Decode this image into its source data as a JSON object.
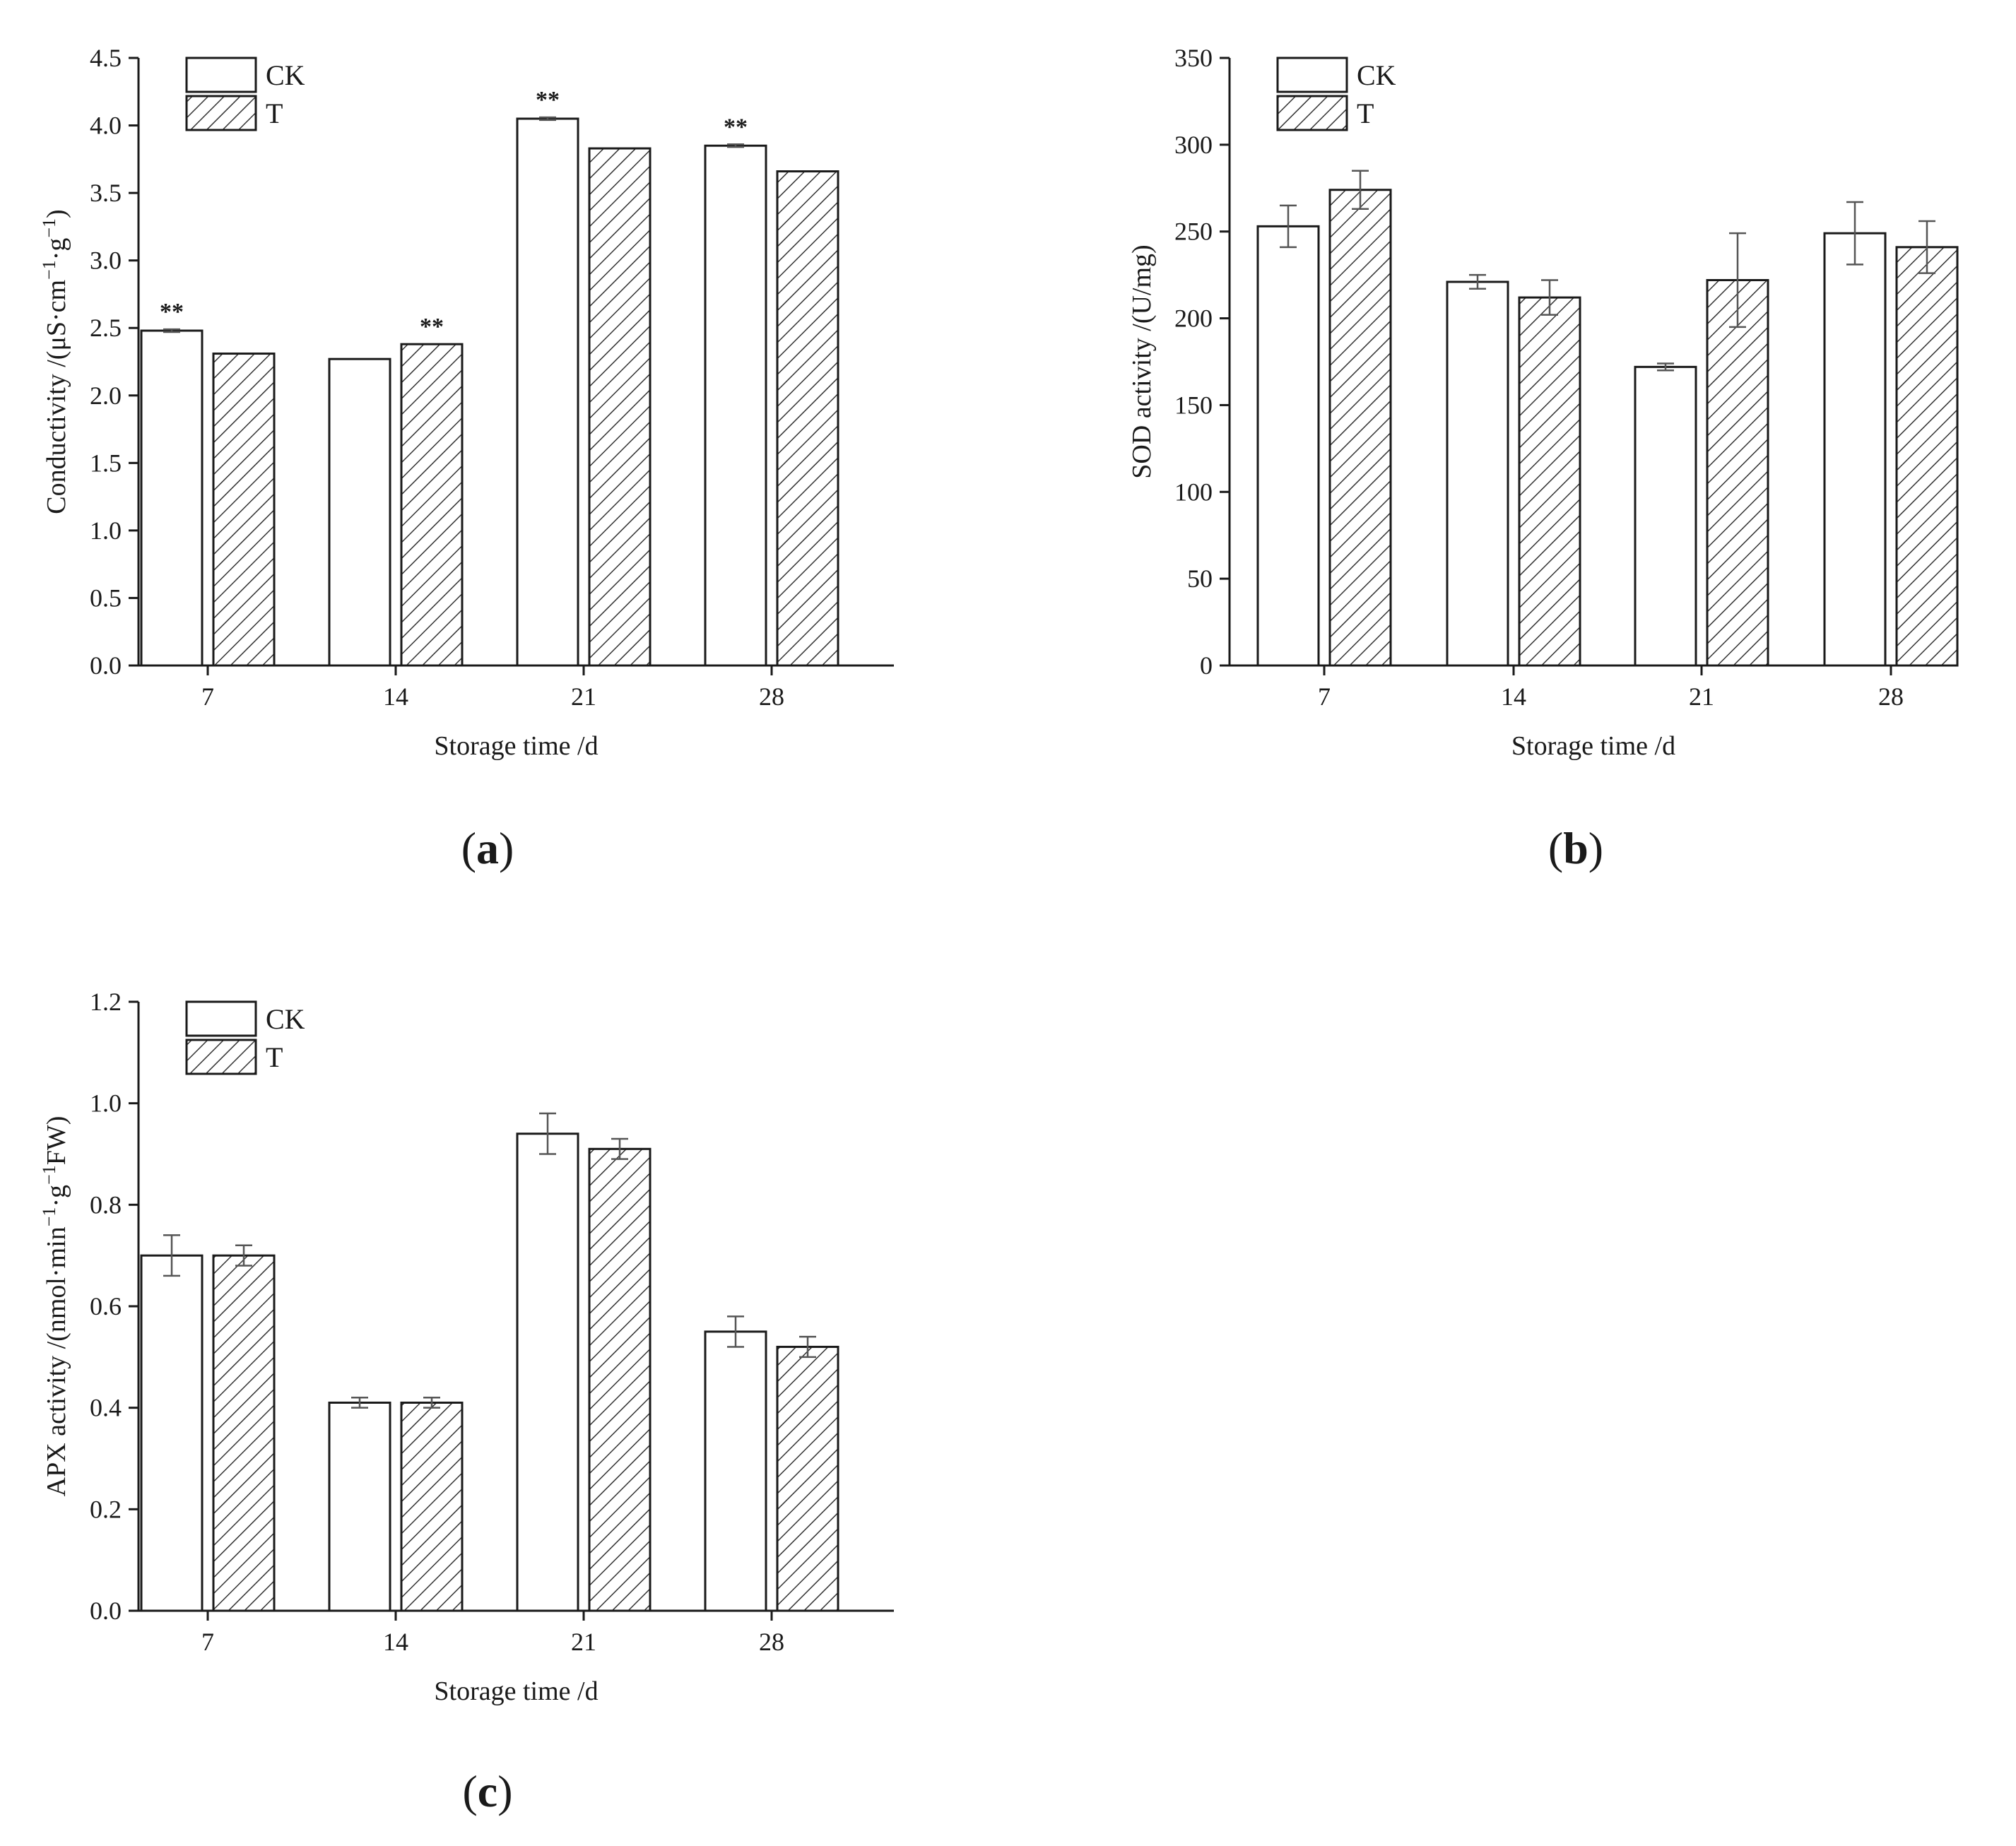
{
  "colors": {
    "axis": "#1a1a1a",
    "bar_ck_fill": "#ffffff",
    "bar_t_hatch": "#333333",
    "error_bar": "#555555"
  },
  "chart_data": [
    {
      "id": "a",
      "type": "bar",
      "panel_label": "a",
      "categories": [
        "7",
        "14",
        "21",
        "28"
      ],
      "xlabel": "Storage time /d",
      "ylabel": "Conductivity /(μS·cm⁻¹·g⁻¹)",
      "ylim": [
        0,
        4.5
      ],
      "yticks": [
        "0.0",
        "0.5",
        "1.0",
        "1.5",
        "2.0",
        "2.5",
        "3.0",
        "3.5",
        "4.0",
        "4.5"
      ],
      "legend": [
        "CK",
        "T"
      ],
      "legend_position": "top-left",
      "series": [
        {
          "name": "CK",
          "pattern": "open",
          "values": [
            2.48,
            2.27,
            4.05,
            3.85
          ],
          "errors": [
            0.01,
            0.0,
            0.01,
            0.01
          ],
          "annotations": [
            "**",
            "",
            "**",
            "**"
          ]
        },
        {
          "name": "T",
          "pattern": "hatched",
          "values": [
            2.31,
            2.38,
            3.83,
            3.66
          ],
          "errors": [
            0.0,
            0.0,
            0.0,
            0.0
          ],
          "annotations": [
            "",
            "**",
            "",
            ""
          ]
        }
      ]
    },
    {
      "id": "b",
      "type": "bar",
      "panel_label": "b",
      "categories": [
        "7",
        "14",
        "21",
        "28"
      ],
      "xlabel": "Storage time /d",
      "ylabel": "SOD activity /(U/mg)",
      "ylim": [
        0,
        350
      ],
      "yticks": [
        "0",
        "50",
        "100",
        "150",
        "200",
        "250",
        "300",
        "350"
      ],
      "legend": [
        "CK",
        "T"
      ],
      "legend_position": "top-left",
      "series": [
        {
          "name": "CK",
          "pattern": "open",
          "values": [
            253,
            221,
            172,
            249
          ],
          "errors": [
            12,
            4,
            2,
            18
          ],
          "annotations": [
            "",
            "",
            "",
            ""
          ]
        },
        {
          "name": "T",
          "pattern": "hatched",
          "values": [
            274,
            212,
            222,
            241
          ],
          "errors": [
            11,
            10,
            27,
            15
          ],
          "annotations": [
            "",
            "",
            "",
            ""
          ]
        }
      ]
    },
    {
      "id": "c",
      "type": "bar",
      "panel_label": "c",
      "categories": [
        "7",
        "14",
        "21",
        "28"
      ],
      "xlabel": "Storage time /d",
      "ylabel": "APX activity /(nmol·min⁻¹·g⁻¹FW)",
      "ylim": [
        0,
        1.2
      ],
      "yticks": [
        "0.0",
        "0.2",
        "0.4",
        "0.6",
        "0.8",
        "1.0",
        "1.2"
      ],
      "legend": [
        "CK",
        "T"
      ],
      "legend_position": "top-left",
      "series": [
        {
          "name": "CK",
          "pattern": "open",
          "values": [
            0.7,
            0.41,
            0.94,
            0.55
          ],
          "errors": [
            0.04,
            0.01,
            0.04,
            0.03
          ],
          "annotations": [
            "",
            "",
            "",
            ""
          ]
        },
        {
          "name": "T",
          "pattern": "hatched",
          "values": [
            0.7,
            0.41,
            0.91,
            0.52
          ],
          "errors": [
            0.02,
            0.01,
            0.02,
            0.02
          ],
          "annotations": [
            "",
            "",
            "",
            ""
          ]
        }
      ]
    }
  ]
}
